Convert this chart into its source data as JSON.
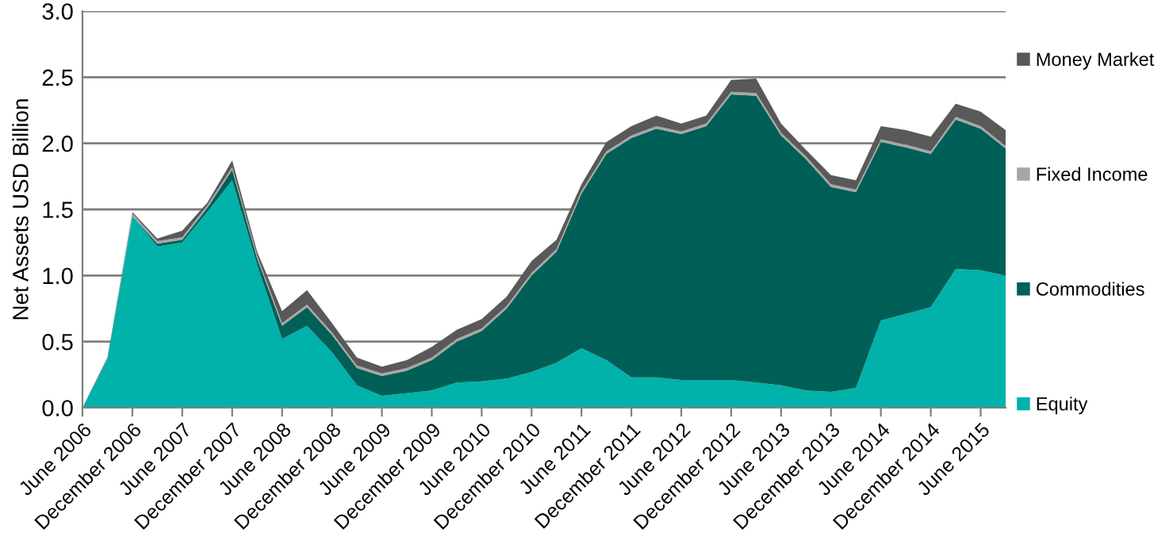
{
  "chart_data": {
    "type": "area",
    "stacked": true,
    "ylabel": "Net Assets USD Billion",
    "categories": [
      "June 2006",
      null,
      "December 2006",
      null,
      "June 2007",
      null,
      "December 2007",
      null,
      "June 2008",
      null,
      "December 2008",
      null,
      "June 2009",
      null,
      "December 2009",
      null,
      "June 2010",
      null,
      "December 2010",
      null,
      "June 2011",
      null,
      "December 2011",
      null,
      "June 2012",
      null,
      "December 2012",
      null,
      "June 2013",
      null,
      "December 2013",
      null,
      "June 2014",
      null,
      "December 2014",
      null,
      "June 2015",
      null
    ],
    "series": [
      {
        "name": "Equity",
        "color": "#00b2a9",
        "values": [
          0,
          0.37,
          1.45,
          1.22,
          1.25,
          1.48,
          1.72,
          1.08,
          0.52,
          0.62,
          0.42,
          0.17,
          0.09,
          0.11,
          0.13,
          0.19,
          0.2,
          0.22,
          0.27,
          0.34,
          0.45,
          0.36,
          0.23,
          0.23,
          0.21,
          0.21,
          0.21,
          0.19,
          0.17,
          0.13,
          0.12,
          0.15,
          0.66,
          0.71,
          0.76,
          1.05,
          1.04,
          1.0
        ]
      },
      {
        "name": "Commodities",
        "color": "#005f57",
        "values": [
          0,
          0,
          0,
          0.02,
          0.02,
          0.03,
          0.08,
          0.05,
          0.1,
          0.14,
          0.13,
          0.13,
          0.15,
          0.17,
          0.23,
          0.31,
          0.38,
          0.53,
          0.73,
          0.84,
          1.17,
          1.56,
          1.81,
          1.88,
          1.86,
          1.92,
          2.16,
          2.17,
          1.89,
          1.75,
          1.55,
          1.48,
          1.35,
          1.26,
          1.16,
          1.13,
          1.07,
          0.96
        ]
      },
      {
        "name": "Fixed Income",
        "color": "#a6a6a6",
        "values": [
          0,
          0,
          0.02,
          0.02,
          0.02,
          0.02,
          0.02,
          0.02,
          0.02,
          0.02,
          0.02,
          0.02,
          0.02,
          0.02,
          0.02,
          0.02,
          0.02,
          0.02,
          0.02,
          0.02,
          0.02,
          0.02,
          0.02,
          0.02,
          0.02,
          0.02,
          0.02,
          0.02,
          0.02,
          0.02,
          0.02,
          0.02,
          0.02,
          0.02,
          0.02,
          0.02,
          0.02,
          0.02
        ]
      },
      {
        "name": "Money Market",
        "color": "#595959",
        "values": [
          0,
          0.01,
          0.01,
          0.02,
          0.05,
          0.02,
          0.05,
          0.03,
          0.09,
          0.11,
          0.07,
          0.06,
          0.05,
          0.06,
          0.08,
          0.07,
          0.07,
          0.07,
          0.09,
          0.07,
          0.05,
          0.07,
          0.07,
          0.08,
          0.06,
          0.06,
          0.09,
          0.11,
          0.07,
          0.05,
          0.07,
          0.07,
          0.1,
          0.11,
          0.11,
          0.1,
          0.11,
          0.12
        ]
      }
    ],
    "ylim": [
      0,
      3.0
    ],
    "yticks": [
      {
        "value": 0,
        "label": "0.0"
      },
      {
        "value": 0.5,
        "label": "0.5"
      },
      {
        "value": 1.0,
        "label": "1.0"
      },
      {
        "value": 1.5,
        "label": "1.5"
      },
      {
        "value": 2.0,
        "label": "2.0"
      },
      {
        "value": 2.5,
        "label": "2.5"
      },
      {
        "value": 3.0,
        "label": "3.0"
      }
    ],
    "grid": "y",
    "legend": "right"
  }
}
